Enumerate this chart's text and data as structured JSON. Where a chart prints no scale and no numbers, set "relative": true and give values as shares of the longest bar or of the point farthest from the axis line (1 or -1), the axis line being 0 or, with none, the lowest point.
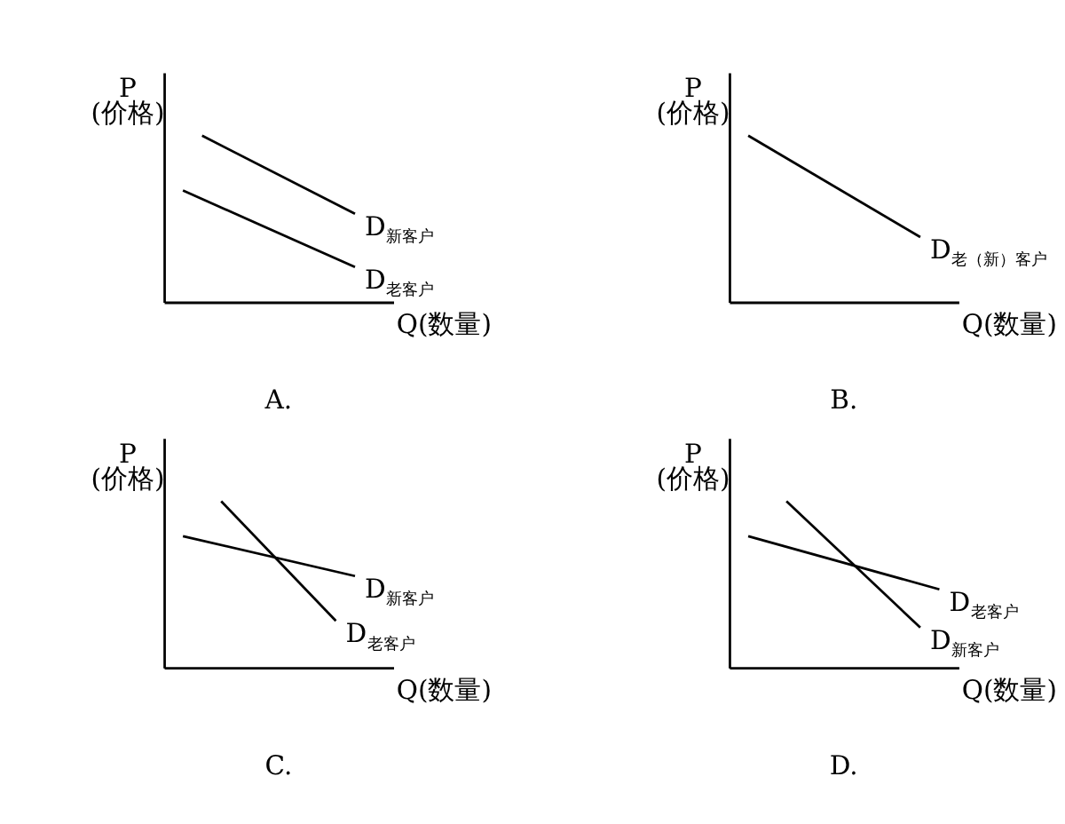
{
  "chart_data": [
    {
      "type": "line",
      "title": "A.",
      "ylabel": "P\n(价格)",
      "xlabel": "Q(数量)",
      "relative": true,
      "categories": [
        null,
        null,
        null,
        null,
        null,
        null,
        null,
        null,
        null,
        null,
        null,
        null,
        null
      ],
      "series": [
        {
          "name": "D$_{新客户}$",
          "color": "#000000",
          "values": [
            null,
            null,
            1,
            null,
            null,
            null,
            null,
            null,
            null,
            null,
            0.53,
            null,
            null
          ]
        },
        {
          "name": "D$_{老客户}$",
          "color": "#000000",
          "values": [
            null,
            0.67,
            null,
            null,
            null,
            null,
            null,
            null,
            null,
            null,
            0.21,
            null,
            null
          ]
        }
      ]
    },
    {
      "type": "line",
      "title": "B.",
      "ylabel": "P\n(价格)",
      "xlabel": "Q(数量)",
      "relative": true,
      "categories": [
        null,
        null,
        null,
        null,
        null,
        null,
        null,
        null,
        null,
        null,
        null,
        null,
        null
      ],
      "series": [
        {
          "name": "D$_{老（新）客户}$",
          "color": "#000000",
          "values": [
            null,
            1,
            null,
            null,
            null,
            null,
            null,
            null,
            null,
            null,
            0.39,
            null,
            null
          ]
        }
      ]
    },
    {
      "type": "line",
      "title": "C.",
      "ylabel": "P\n(价格)",
      "xlabel": "Q(数量)",
      "relative": true,
      "categories": [
        null,
        null,
        null,
        null,
        null,
        null,
        null,
        null,
        null,
        null,
        null,
        null,
        null
      ],
      "series": [
        {
          "name": "D$_{新客户}$",
          "color": "#000000",
          "values": [
            null,
            0.79,
            null,
            null,
            null,
            null,
            null,
            null,
            null,
            null,
            0.55,
            null,
            null
          ]
        },
        {
          "name": "D$_{老客户}$",
          "color": "#000000",
          "values": [
            null,
            null,
            null,
            1,
            null,
            null,
            null,
            null,
            null,
            0.28,
            null,
            null,
            null
          ]
        }
      ]
    },
    {
      "type": "line",
      "title": "D.",
      "ylabel": "P\n(价格)",
      "xlabel": "Q(数量)",
      "relative": true,
      "categories": [
        null,
        null,
        null,
        null,
        null,
        null,
        null,
        null,
        null,
        null,
        null,
        null,
        null
      ],
      "series": [
        {
          "name": "D$_{老客户}$",
          "color": "#000000",
          "values": [
            null,
            0.79,
            null,
            null,
            null,
            null,
            null,
            null,
            null,
            null,
            null,
            0.47,
            null
          ]
        },
        {
          "name": "D$_{新客户}$",
          "color": "#000000",
          "values": [
            null,
            null,
            null,
            1,
            null,
            null,
            null,
            null,
            null,
            null,
            0.24,
            null,
            null
          ]
        }
      ]
    }
  ]
}
